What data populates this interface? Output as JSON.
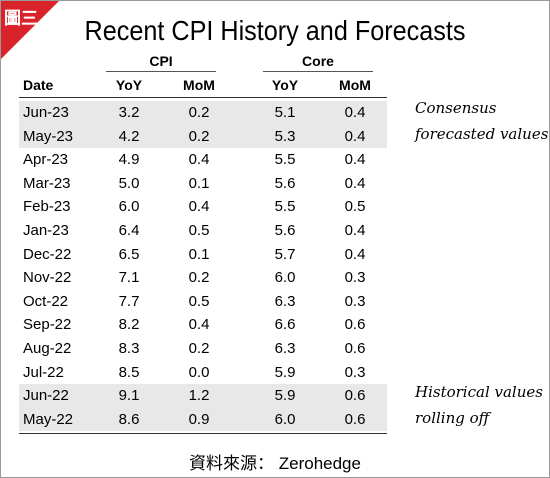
{
  "badge": "圖三",
  "header": {
    "title": "Recent CPI History and Forecasts"
  },
  "table": {
    "groups": [
      "CPI",
      "Core"
    ],
    "columns": [
      "Date",
      "YoY",
      "MoM",
      "YoY",
      "MoM"
    ],
    "rows": [
      [
        "Jun-23",
        "3.2",
        "0.2",
        "5.1",
        "0.4"
      ],
      [
        "May-23",
        "4.2",
        "0.2",
        "5.3",
        "0.4"
      ],
      [
        "Apr-23",
        "4.9",
        "0.4",
        "5.5",
        "0.4"
      ],
      [
        "Mar-23",
        "5.0",
        "0.1",
        "5.6",
        "0.4"
      ],
      [
        "Feb-23",
        "6.0",
        "0.4",
        "5.5",
        "0.5"
      ],
      [
        "Jan-23",
        "6.4",
        "0.5",
        "5.6",
        "0.4"
      ],
      [
        "Dec-22",
        "6.5",
        "0.1",
        "5.7",
        "0.4"
      ],
      [
        "Nov-22",
        "7.1",
        "0.2",
        "6.0",
        "0.3"
      ],
      [
        "Oct-22",
        "7.7",
        "0.5",
        "6.3",
        "0.3"
      ],
      [
        "Sep-22",
        "8.2",
        "0.4",
        "6.6",
        "0.6"
      ],
      [
        "Aug-22",
        "8.3",
        "0.2",
        "6.3",
        "0.6"
      ],
      [
        "Jul-22",
        "8.5",
        "0.0",
        "5.9",
        "0.3"
      ],
      [
        "Jun-22",
        "9.1",
        "1.2",
        "5.9",
        "0.6"
      ],
      [
        "May-22",
        "8.6",
        "0.9",
        "6.0",
        "0.6"
      ]
    ]
  },
  "notes": [
    {
      "lines": [
        "Consensus",
        "forecasted values"
      ]
    },
    {
      "lines": [
        "Historical values",
        "rolling off"
      ]
    }
  ],
  "source": "資料來源： Zerohedge"
}
